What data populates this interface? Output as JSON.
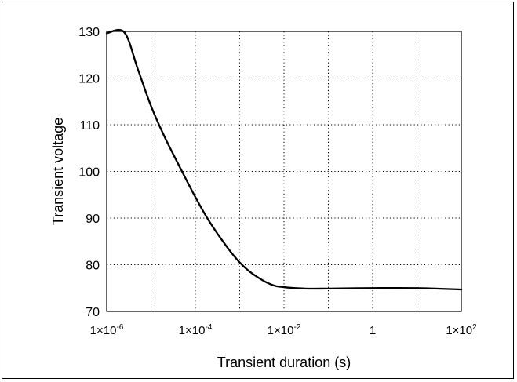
{
  "chart_data": {
    "type": "line",
    "title": "",
    "xlabel": "Transient duration (s)",
    "ylabel": "Transient voltage",
    "x_scale": "log",
    "xlim": [
      1e-06,
      100
    ],
    "ylim": [
      70,
      130
    ],
    "x_ticks": [
      {
        "value": 1e-06,
        "mantissa": "1×10",
        "exp": "-6"
      },
      {
        "value": 0.0001,
        "mantissa": "1×10",
        "exp": "-4"
      },
      {
        "value": 0.01,
        "mantissa": "1×10",
        "exp": "-2"
      },
      {
        "value": 1,
        "mantissa": "1",
        "exp": ""
      },
      {
        "value": 100,
        "mantissa": "1×10",
        "exp": "2"
      }
    ],
    "x_minor_gridlines": [
      1e-05,
      0.001,
      0.1,
      10
    ],
    "y_ticks": [
      70,
      80,
      90,
      100,
      110,
      120,
      130
    ],
    "grid": true,
    "grid_style": "dotted",
    "series": [
      {
        "color": "#000000",
        "points": [
          {
            "x": 1e-06,
            "y": 129.6
          },
          {
            "x": 2.5e-06,
            "y": 129.8
          },
          {
            "x": 5e-06,
            "y": 122
          },
          {
            "x": 1e-05,
            "y": 114
          },
          {
            "x": 2e-05,
            "y": 107.5
          },
          {
            "x": 5e-05,
            "y": 100
          },
          {
            "x": 0.0001,
            "y": 94.5
          },
          {
            "x": 0.0002,
            "y": 89.5
          },
          {
            "x": 0.0005,
            "y": 84
          },
          {
            "x": 0.001,
            "y": 80.5
          },
          {
            "x": 0.002,
            "y": 78
          },
          {
            "x": 0.005,
            "y": 75.8
          },
          {
            "x": 0.01,
            "y": 75.2
          },
          {
            "x": 0.03,
            "y": 74.9
          },
          {
            "x": 0.1,
            "y": 74.9
          },
          {
            "x": 1,
            "y": 75.0
          },
          {
            "x": 10,
            "y": 75.0
          },
          {
            "x": 100,
            "y": 74.7
          }
        ]
      }
    ]
  }
}
